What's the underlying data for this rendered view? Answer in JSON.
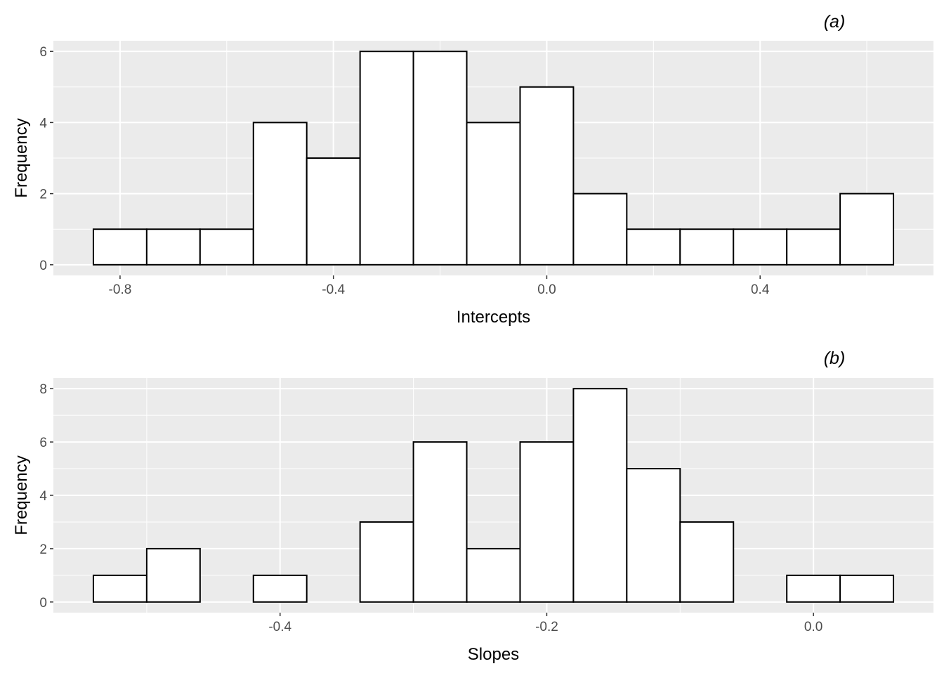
{
  "chart_data": [
    {
      "type": "bar",
      "tag": "(a)",
      "xlabel": "Intercepts",
      "ylabel": "Frequency",
      "bin_width": 0.1,
      "bin_left_edges": [
        -0.85,
        -0.75,
        -0.65,
        -0.55,
        -0.45,
        -0.35,
        -0.25,
        -0.15,
        -0.05,
        0.05,
        0.15,
        0.25,
        0.35,
        0.45,
        0.55
      ],
      "values": [
        1,
        1,
        1,
        4,
        3,
        6,
        6,
        4,
        5,
        2,
        1,
        1,
        1,
        1,
        2
      ],
      "xlim": [
        -0.925,
        0.725
      ],
      "ylim": [
        -0.3,
        6.3
      ],
      "x_ticks": [
        -0.8,
        -0.4,
        0.0,
        0.4
      ],
      "x_tick_labels": [
        "-0.8",
        "-0.4",
        "0.0",
        "0.4"
      ],
      "y_ticks": [
        0,
        2,
        4,
        6
      ],
      "y_tick_labels": [
        "0",
        "2",
        "4",
        "6"
      ],
      "grid": true,
      "background": "#ebebeb",
      "bar_fill": "#ffffff",
      "bar_stroke": "#000000"
    },
    {
      "type": "bar",
      "tag": "(b)",
      "xlabel": "Slopes",
      "ylabel": "Frequency",
      "bin_width": 0.04,
      "bin_left_edges": [
        -0.54,
        -0.5,
        -0.46,
        -0.42,
        -0.38,
        -0.34,
        -0.3,
        -0.26,
        -0.22,
        -0.18,
        -0.14,
        -0.1,
        -0.06,
        -0.02,
        0.02
      ],
      "values": [
        1,
        2,
        0,
        1,
        0,
        3,
        6,
        2,
        6,
        8,
        5,
        3,
        0,
        1,
        1
      ],
      "xlim": [
        -0.57,
        0.09
      ],
      "ylim": [
        -0.4,
        8.4
      ],
      "x_ticks": [
        -0.4,
        -0.2,
        0.0
      ],
      "x_tick_labels": [
        "-0.4",
        "-0.2",
        "0.0"
      ],
      "y_ticks": [
        0,
        2,
        4,
        6,
        8
      ],
      "y_tick_labels": [
        "0",
        "2",
        "4",
        "6",
        "8"
      ],
      "grid": true,
      "background": "#ebebeb",
      "bar_fill": "#ffffff",
      "bar_stroke": "#000000"
    }
  ]
}
